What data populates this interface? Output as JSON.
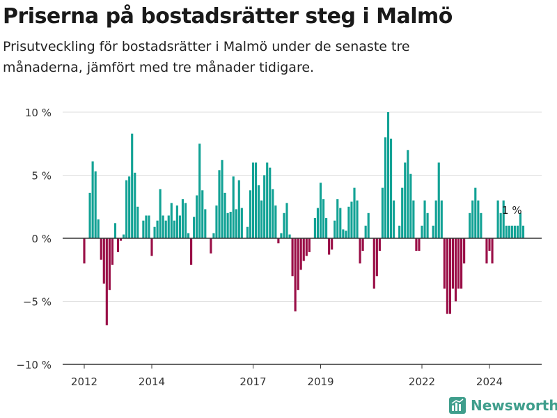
{
  "header": {
    "title": "Priserna på bostadsrätter steg i Malmö",
    "subtitle": "Prisutveckling för bostadsrätter i Malmö under de senaste tre månaderna, jämfört med tre månader tidigare."
  },
  "brand": {
    "name": "Newsworthy",
    "icon": "newsworthy-logo-icon",
    "color": "#3f9e8c"
  },
  "colors": {
    "positive": "#12a295",
    "negative": "#9a0f47",
    "grid": "#dddddd",
    "zero_line": "#333333"
  },
  "chart_data": {
    "type": "bar",
    "ylim": [
      -10,
      10
    ],
    "yticks": [
      {
        "value": 10,
        "label": "10 %"
      },
      {
        "value": 5,
        "label": "5 %"
      },
      {
        "value": 0,
        "label": "0 %"
      },
      {
        "value": -5,
        "label": "−5 %"
      },
      {
        "value": -10,
        "label": "−10 %"
      }
    ],
    "xticks": [
      {
        "date": "2012-01",
        "label": "2012"
      },
      {
        "date": "2014-01",
        "label": "2014"
      },
      {
        "date": "2017-01",
        "label": "2017"
      },
      {
        "date": "2019-01",
        "label": "2019"
      },
      {
        "date": "2022-01",
        "label": "2022"
      },
      {
        "date": "2024-01",
        "label": "2024"
      }
    ],
    "annotation": {
      "date": "2024-09",
      "label": "1 %"
    },
    "series": [
      {
        "values": [
          [
            "2012-01",
            -2
          ],
          [
            "2012-03",
            3.6
          ],
          [
            "2012-04",
            6.1
          ],
          [
            "2012-05",
            5.3
          ],
          [
            "2012-06",
            1.5
          ],
          [
            "2012-07",
            -1.7
          ],
          [
            "2012-08",
            -3.6
          ],
          [
            "2012-09",
            -6.9
          ],
          [
            "2012-10",
            -4.1
          ],
          [
            "2012-11",
            -2.1
          ],
          [
            "2012-12",
            1.2
          ],
          [
            "2013-01",
            -1.1
          ],
          [
            "2013-02",
            -0.2
          ],
          [
            "2013-03",
            0.3
          ],
          [
            "2013-04",
            4.6
          ],
          [
            "2013-05",
            4.9
          ],
          [
            "2013-06",
            8.3
          ],
          [
            "2013-07",
            5.2
          ],
          [
            "2013-08",
            2.5
          ],
          [
            "2013-10",
            1.4
          ],
          [
            "2013-11",
            1.8
          ],
          [
            "2013-12",
            1.8
          ],
          [
            "2014-01",
            -1.4
          ],
          [
            "2014-02",
            0.9
          ],
          [
            "2014-03",
            1.4
          ],
          [
            "2014-04",
            3.9
          ],
          [
            "2014-05",
            1.8
          ],
          [
            "2014-06",
            1.4
          ],
          [
            "2014-07",
            1.8
          ],
          [
            "2014-08",
            2.8
          ],
          [
            "2014-09",
            1.4
          ],
          [
            "2014-10",
            2.6
          ],
          [
            "2014-11",
            1.8
          ],
          [
            "2014-12",
            3.1
          ],
          [
            "2015-01",
            2.8
          ],
          [
            "2015-02",
            0.4
          ],
          [
            "2015-03",
            -2.1
          ],
          [
            "2015-04",
            1.7
          ],
          [
            "2015-05",
            3.4
          ],
          [
            "2015-06",
            7.5
          ],
          [
            "2015-07",
            3.8
          ],
          [
            "2015-08",
            2.3
          ],
          [
            "2015-10",
            -1.2
          ],
          [
            "2015-11",
            0.4
          ],
          [
            "2015-12",
            2.6
          ],
          [
            "2016-01",
            5.4
          ],
          [
            "2016-02",
            6.2
          ],
          [
            "2016-03",
            3.6
          ],
          [
            "2016-04",
            2
          ],
          [
            "2016-05",
            2.1
          ],
          [
            "2016-06",
            4.9
          ],
          [
            "2016-07",
            2.3
          ],
          [
            "2016-08",
            4.6
          ],
          [
            "2016-09",
            2.4
          ],
          [
            "2016-11",
            0.9
          ],
          [
            "2016-12",
            3.8
          ],
          [
            "2017-01",
            6
          ],
          [
            "2017-02",
            6
          ],
          [
            "2017-03",
            4.2
          ],
          [
            "2017-04",
            3
          ],
          [
            "2017-05",
            5
          ],
          [
            "2017-06",
            6
          ],
          [
            "2017-07",
            5.6
          ],
          [
            "2017-08",
            3.9
          ],
          [
            "2017-09",
            2.6
          ],
          [
            "2017-10",
            -0.4
          ],
          [
            "2017-11",
            0.4
          ],
          [
            "2017-12",
            2
          ],
          [
            "2018-01",
            2.8
          ],
          [
            "2018-02",
            0.3
          ],
          [
            "2018-03",
            -3
          ],
          [
            "2018-04",
            -5.8
          ],
          [
            "2018-05",
            -4.1
          ],
          [
            "2018-06",
            -2.5
          ],
          [
            "2018-07",
            -1.8
          ],
          [
            "2018-08",
            -1.4
          ],
          [
            "2018-09",
            -1.1
          ],
          [
            "2018-11",
            1.6
          ],
          [
            "2018-12",
            2.4
          ],
          [
            "2019-01",
            4.4
          ],
          [
            "2019-02",
            3.1
          ],
          [
            "2019-03",
            1.6
          ],
          [
            "2019-04",
            -1.3
          ],
          [
            "2019-05",
            -0.9
          ],
          [
            "2019-06",
            1.4
          ],
          [
            "2019-07",
            3.1
          ],
          [
            "2019-08",
            2.4
          ],
          [
            "2019-09",
            0.7
          ],
          [
            "2019-10",
            0.6
          ],
          [
            "2019-11",
            2.5
          ],
          [
            "2019-12",
            2.9
          ],
          [
            "2020-01",
            4
          ],
          [
            "2020-02",
            3
          ],
          [
            "2020-03",
            -2
          ],
          [
            "2020-04",
            -1
          ],
          [
            "2020-05",
            1
          ],
          [
            "2020-06",
            2
          ],
          [
            "2020-08",
            -4
          ],
          [
            "2020-09",
            -3
          ],
          [
            "2020-10",
            -1
          ],
          [
            "2020-11",
            4
          ],
          [
            "2020-12",
            8
          ],
          [
            "2021-01",
            10
          ],
          [
            "2021-02",
            7.9
          ],
          [
            "2021-03",
            3
          ],
          [
            "2021-05",
            1
          ],
          [
            "2021-06",
            4
          ],
          [
            "2021-07",
            6
          ],
          [
            "2021-08",
            7
          ],
          [
            "2021-09",
            5.1
          ],
          [
            "2021-10",
            3
          ],
          [
            "2021-11",
            -1
          ],
          [
            "2021-12",
            -1
          ],
          [
            "2022-01",
            1
          ],
          [
            "2022-02",
            3
          ],
          [
            "2022-03",
            2
          ],
          [
            "2022-05",
            1
          ],
          [
            "2022-06",
            3
          ],
          [
            "2022-07",
            6
          ],
          [
            "2022-08",
            3
          ],
          [
            "2022-09",
            -4
          ],
          [
            "2022-10",
            -6
          ],
          [
            "2022-11",
            -6
          ],
          [
            "2022-12",
            -4
          ],
          [
            "2023-01",
            -5
          ],
          [
            "2023-02",
            -4
          ],
          [
            "2023-03",
            -4
          ],
          [
            "2023-04",
            -2
          ],
          [
            "2023-06",
            2
          ],
          [
            "2023-07",
            3
          ],
          [
            "2023-08",
            4
          ],
          [
            "2023-09",
            3
          ],
          [
            "2023-10",
            2
          ],
          [
            "2023-12",
            -2
          ],
          [
            "2024-01",
            -1
          ],
          [
            "2024-02",
            -2
          ],
          [
            "2024-04",
            3
          ],
          [
            "2024-05",
            2
          ],
          [
            "2024-06",
            3
          ],
          [
            "2024-07",
            1
          ],
          [
            "2024-08",
            1
          ],
          [
            "2024-09",
            1
          ],
          [
            "2024-10",
            1
          ],
          [
            "2024-11",
            1
          ],
          [
            "2024-12",
            2
          ],
          [
            "2025-01",
            1
          ]
        ]
      }
    ]
  }
}
